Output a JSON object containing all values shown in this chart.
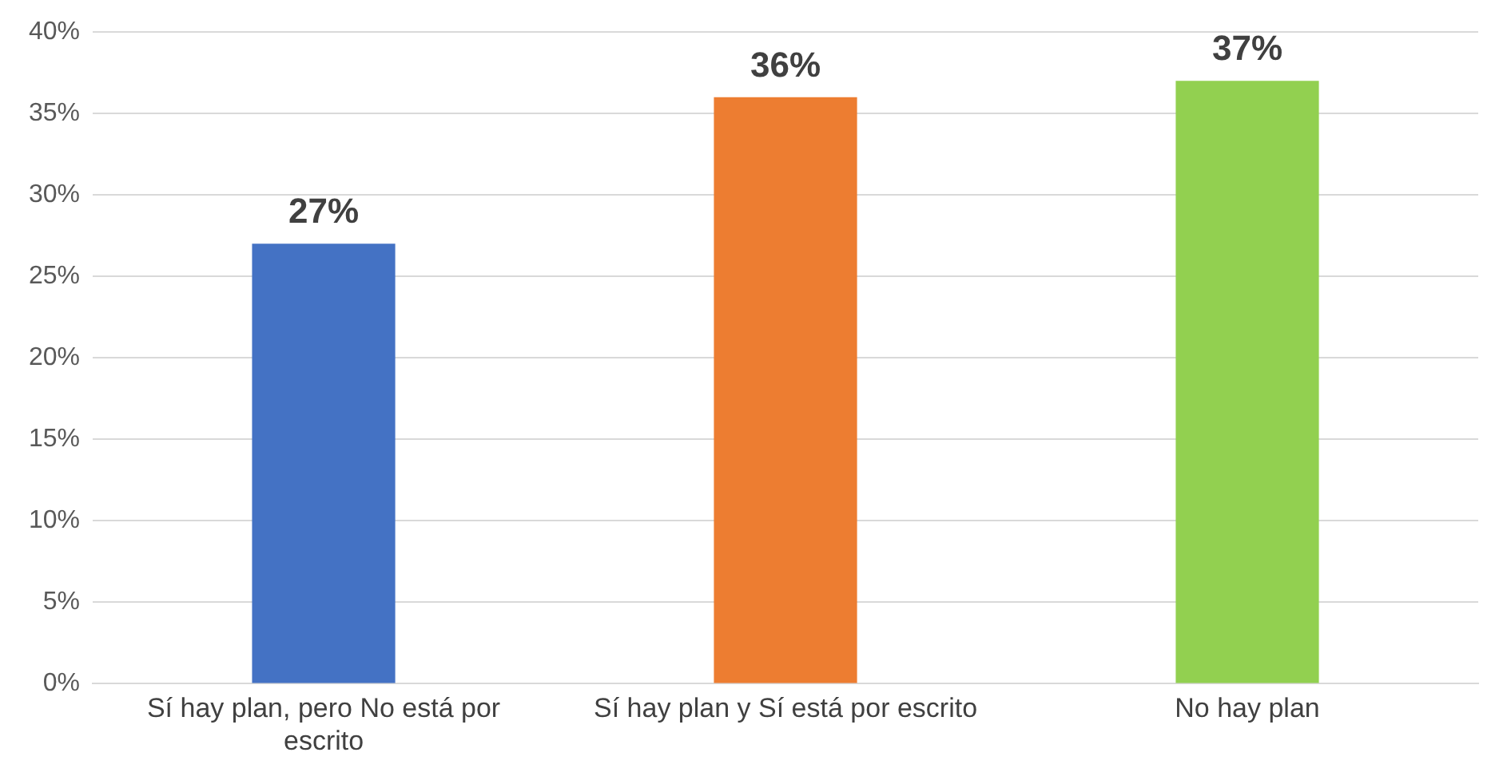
{
  "chart_data": {
    "type": "bar",
    "categories": [
      "Sí hay plan, pero No está por escrito",
      "Sí hay plan y Sí está por escrito",
      "No hay plan"
    ],
    "values": [
      27,
      36,
      37
    ],
    "colors": [
      "#4472c4",
      "#ed7d31",
      "#92d050"
    ],
    "ylim": [
      0,
      40
    ],
    "yticks": [
      {
        "value": 0,
        "label": "0%"
      },
      {
        "value": 5,
        "label": "5%"
      },
      {
        "value": 10,
        "label": "10%"
      },
      {
        "value": 15,
        "label": "15%"
      },
      {
        "value": 20,
        "label": "20%"
      },
      {
        "value": 25,
        "label": "25%"
      },
      {
        "value": 30,
        "label": "30%"
      },
      {
        "value": 35,
        "label": "35%"
      },
      {
        "value": 40,
        "label": "40%"
      }
    ],
    "value_labels": [
      "27%",
      "36%",
      "37%"
    ],
    "grid": "y",
    "legend": false
  }
}
